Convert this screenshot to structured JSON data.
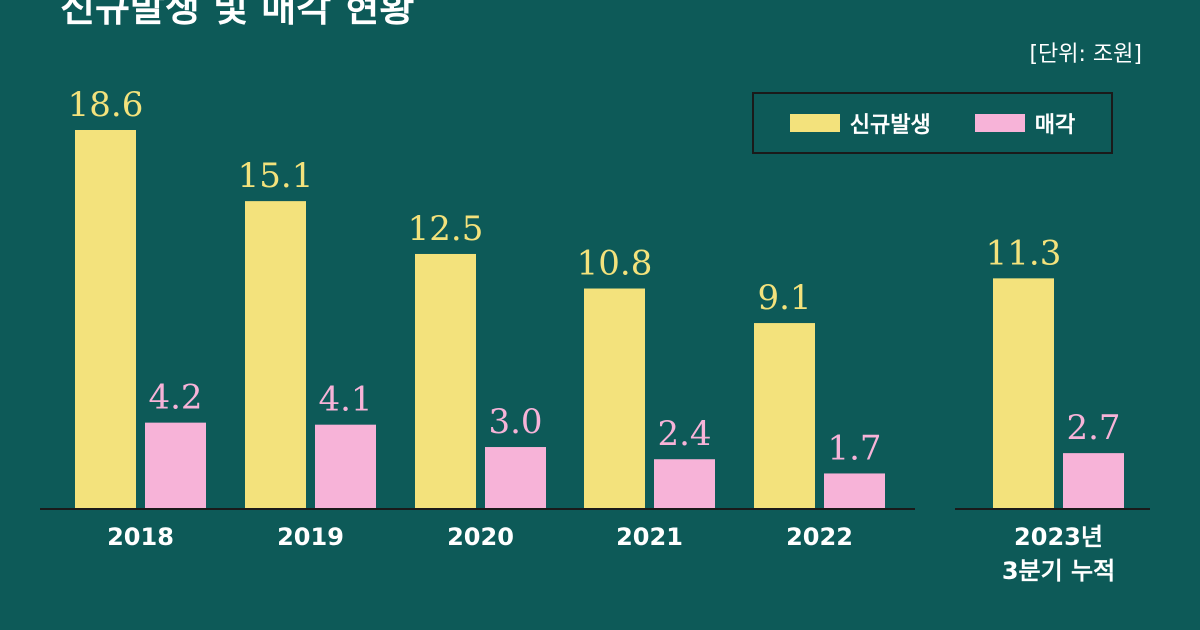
{
  "title": {
    "line1": "",
    "line2": "신규발생 및 매각 현황"
  },
  "unit": "[단위: 조원]",
  "colors": {
    "background": "#0d5a58",
    "new": "#f3e27c",
    "sold": "#f7b3d8"
  },
  "legend": {
    "new_label": "신규발생",
    "sold_label": "매각"
  },
  "chart_data": {
    "type": "bar",
    "categories": [
      "2018",
      "2019",
      "2020",
      "2021",
      "2022",
      [
        "2023년",
        "3분기 누적"
      ]
    ],
    "series": [
      {
        "name": "신규발생",
        "values": [
          18.6,
          15.1,
          12.5,
          10.8,
          9.1,
          11.3
        ]
      },
      {
        "name": "매각",
        "values": [
          4.2,
          4.1,
          3.0,
          2.4,
          1.7,
          2.7
        ]
      }
    ],
    "labels": [
      [
        "18.6",
        "15.1",
        "12.5",
        "10.8",
        "9.1",
        "11.3"
      ],
      [
        "4.2",
        "4.1",
        "3.0",
        "2.4",
        "1.7",
        "2.7"
      ]
    ],
    "ylim": [
      0,
      18.6
    ],
    "grid": false,
    "legend_position": "top-right",
    "baseline_gap_before_last": true
  }
}
